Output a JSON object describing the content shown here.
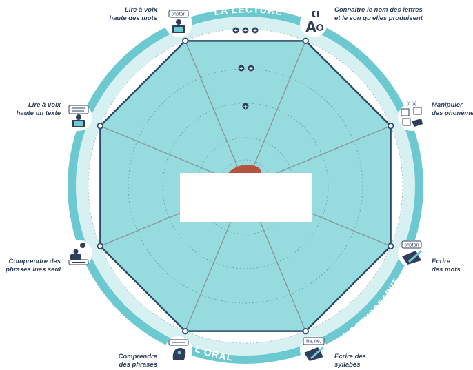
{
  "sections": {
    "lecture": "LA LECTURE",
    "orthographe": "L'ORTHOGRAPHE",
    "oral": "L'ORAL"
  },
  "levels": [
    "+",
    "++",
    "+++"
  ],
  "skills": [
    {
      "id": "lire-mots",
      "line1": "Lire à voix",
      "line2": "haute des mots",
      "icon": "chaton-reading-icon",
      "icon_text": "chaton"
    },
    {
      "id": "lettres",
      "line1": "Connaître le nom des lettres",
      "line2": "et le son qu'elles produisent",
      "icon": "letter-a-speaker-icon",
      "icon_text": "A"
    },
    {
      "id": "phonemes",
      "line1": "Manipuler",
      "line2": "des phonème",
      "icon": "phoneme-cards-icon",
      "icon_text": "[r] [a]"
    },
    {
      "id": "ecrire-mots",
      "line1": "Ecrire",
      "line2": "des mots",
      "icon": "writing-chaton-icon",
      "icon_text": "chaton"
    },
    {
      "id": "syllabes",
      "line1": "Ecrire des",
      "line2": "syllabes",
      "icon": "writing-syllables-icon",
      "icon_text": "ba, né,"
    },
    {
      "id": "comprendre-phrases",
      "line1": "Comprendre",
      "line2": "des phrases",
      "icon": "head-listening-icon",
      "icon_text": ""
    },
    {
      "id": "comprendre-lues",
      "line1": "Comprendre des",
      "line2": "phrases lues seul",
      "icon": "reader-idea-icon",
      "icon_text": ""
    },
    {
      "id": "lire-texte",
      "line1": "Lire à voix",
      "line2": "haute un texte",
      "icon": "reading-text-icon",
      "icon_text": ""
    }
  ],
  "colors": {
    "outer_band": "#6cc9cf",
    "inner_ring": "#d7f0f1",
    "fill": "#96dcdf",
    "outline": "#2f4a68",
    "spokes": "#8b969c",
    "text": "#2f3e5c",
    "center_mark": "#b5533f"
  }
}
